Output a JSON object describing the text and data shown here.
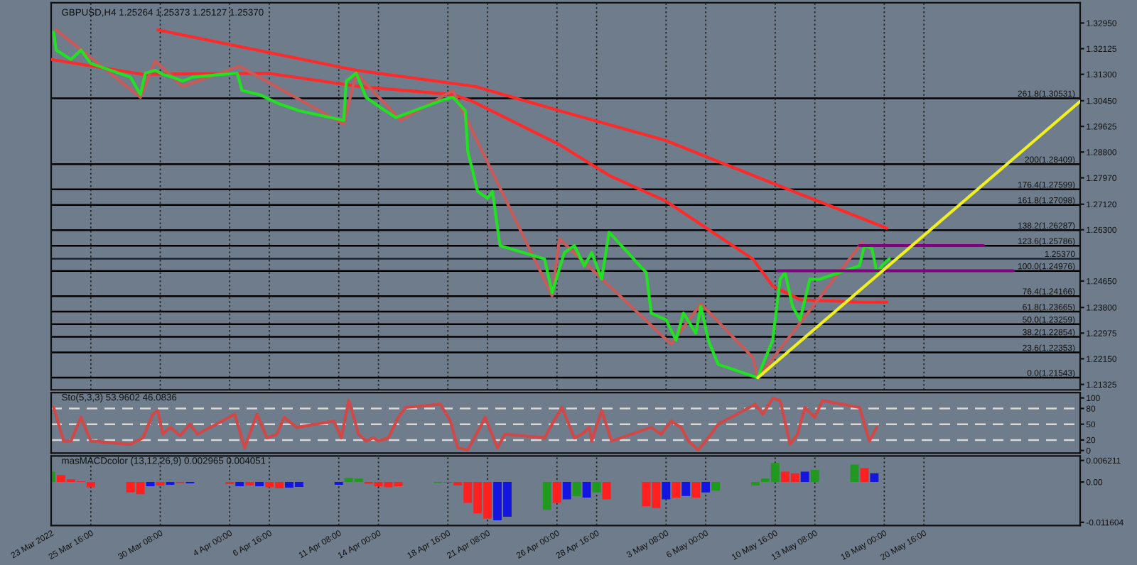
{
  "chart_data": [
    {
      "type": "line",
      "title": "GBPUSD,H4 1.25264 1.25373 1.25127 1.25370",
      "tick_labels": "y",
      "grid": "x",
      "legend": false,
      "xlim": [
        "2022-03-23T00:00",
        "2022-05-31T04:00"
      ],
      "xticks": [
        "2022-03-23T00:00",
        "2022-03-25T16:00",
        "2022-03-30T08:00",
        "2022-04-04T00:00",
        "2022-04-06T16:00",
        "2022-04-11T08:00",
        "2022-04-14T00:00",
        "2022-04-18T16:00",
        "2022-04-21T08:00",
        "2022-04-26T00:00",
        "2022-04-28T16:00",
        "2022-05-03T08:00",
        "2022-05-06T00:00",
        "2022-05-10T16:00",
        "2022-05-13T08:00",
        "2022-05-18T00:00",
        "2022-05-20T16:00"
      ],
      "ylim": [
        1.2115,
        1.336
      ],
      "yticks": [
        {
          "value": 1.3295,
          "label": "1.32950"
        },
        {
          "value": 1.32125,
          "label": "1.32125"
        },
        {
          "value": 1.313,
          "label": "1.31300"
        },
        {
          "value": 1.3045,
          "label": "1.30450"
        },
        {
          "value": 1.29625,
          "label": "1.29625"
        },
        {
          "value": 1.288,
          "label": "1.28800"
        },
        {
          "value": 1.2797,
          "label": "1.27970"
        },
        {
          "value": 1.2712,
          "label": "1.27120"
        },
        {
          "value": 1.263,
          "label": "1.26300"
        },
        {
          "value": 1.2465,
          "label": "1.24650"
        },
        {
          "value": 1.238,
          "label": "1.23800"
        },
        {
          "value": 1.22975,
          "label": "1.22975"
        },
        {
          "value": 1.2215,
          "label": "1.22150"
        },
        {
          "value": 1.21325,
          "label": "1.21325"
        }
      ],
      "series": [
        {
          "color": "#ff2a2a",
          "x": [
            "2022-03-30T04:00",
            "2022-04-12T12:00",
            "2022-04-20T12:00",
            "2022-04-26T04:00",
            "2022-05-03T08:00",
            "2022-05-09T04:00",
            "2022-05-18T04:00"
          ],
          "values": [
            1.3273,
            1.3143,
            1.3091,
            1.3013,
            1.2917,
            1.2805,
            1.2635
          ]
        },
        {
          "color": "#ff2a2a",
          "x": [
            "2022-03-23T00:00",
            "2022-03-29T04:00",
            "2022-04-06T12:00",
            "2022-04-12T16:00",
            "2022-04-19T00:00",
            "2022-04-20T08:00",
            "2022-04-26T04:00",
            "2022-04-29T12:00",
            "2022-05-03T08:00",
            "2022-05-09T04:00",
            "2022-05-10T12:00",
            "2022-05-12T08:00",
            "2022-05-16T12:00",
            "2022-05-18T04:00"
          ],
          "values": [
            1.3178,
            1.313,
            1.3134,
            1.3091,
            1.3065,
            1.3043,
            1.2904,
            1.2805,
            1.2722,
            1.2536,
            1.2449,
            1.2405,
            1.2397,
            1.2397
          ]
        },
        {
          "color": "#c85a5a",
          "x": [
            "2022-03-23T08:00",
            "2022-03-29T00:00",
            "2022-03-30T00:00",
            "2022-03-31T20:00",
            "2022-04-04T16:00",
            "2022-04-11T16:00",
            "2022-04-12T12:00",
            "2022-04-15T12:00",
            "2022-04-19T00:00",
            "2022-04-25T16:00",
            "2022-04-26T04:00",
            "2022-05-03T16:00",
            "2022-05-05T16:00",
            "2022-05-09T04:00",
            "2022-05-09T12:00",
            "2022-05-16T12:00"
          ],
          "values": [
            1.3273,
            1.3056,
            1.3173,
            1.3091,
            1.3156,
            1.297,
            1.3134,
            1.2982,
            1.3078,
            1.2418,
            1.2601,
            1.2262,
            1.2392,
            1.2219,
            1.2154,
            1.2588
          ]
        },
        {
          "color": "#22e022",
          "x": [
            "2022-03-23T04:00",
            "2022-03-23T08:00",
            "2022-03-24T08:00",
            "2022-03-25T00:00",
            "2022-03-25T16:00",
            "2022-03-28T08:00",
            "2022-03-29T00:00",
            "2022-03-29T08:00",
            "2022-03-30T00:00",
            "2022-03-30T12:00",
            "2022-03-31T04:00",
            "2022-03-31T20:00",
            "2022-04-01T12:00",
            "2022-04-04T12:00",
            "2022-04-04T20:00",
            "2022-04-06T00:00",
            "2022-04-07T08:00",
            "2022-04-08T16:00",
            "2022-04-11T16:00",
            "2022-04-11T20:00",
            "2022-04-12T12:00",
            "2022-04-13T04:00",
            "2022-04-14T04:00",
            "2022-04-15T04:00",
            "2022-04-18T08:00",
            "2022-04-19T00:00",
            "2022-04-19T20:00",
            "2022-04-20T00:00",
            "2022-04-20T16:00",
            "2022-04-21T08:00",
            "2022-04-21T16:00",
            "2022-04-22T04:00",
            "2022-04-25T04:00",
            "2022-04-25T16:00",
            "2022-04-26T12:00",
            "2022-04-27T04:00",
            "2022-04-27T20:00",
            "2022-04-28T08:00",
            "2022-04-29T00:00",
            "2022-04-29T12:00",
            "2022-05-02T00:00",
            "2022-05-02T08:00",
            "2022-05-03T08:00",
            "2022-05-04T00:00",
            "2022-05-04T12:00",
            "2022-05-05T08:00",
            "2022-05-05T16:00",
            "2022-05-06T04:00",
            "2022-05-06T20:00",
            "2022-05-09T12:00",
            "2022-05-09T20:00",
            "2022-05-10T12:00",
            "2022-05-11T00:00",
            "2022-05-11T08:00",
            "2022-05-11T20:00",
            "2022-05-12T08:00",
            "2022-05-13T00:00",
            "2022-05-13T16:00",
            "2022-05-16T08:00",
            "2022-05-16T16:00",
            "2022-05-17T04:00",
            "2022-05-17T12:00",
            "2022-05-17T20:00",
            "2022-05-18T08:00"
          ],
          "values": [
            1.3265,
            1.3208,
            1.3178,
            1.3208,
            1.3165,
            1.3121,
            1.3065,
            1.3134,
            1.3143,
            1.313,
            1.3121,
            1.3108,
            1.3121,
            1.3134,
            1.3078,
            1.3065,
            1.3035,
            1.3013,
            1.2982,
            1.3108,
            1.3134,
            1.3056,
            1.3022,
            1.2991,
            1.3048,
            1.3056,
            1.3013,
            1.2883,
            1.2753,
            1.2731,
            1.2753,
            1.2579,
            1.2536,
            1.2427,
            1.2557,
            1.2579,
            1.2514,
            1.2557,
            1.2471,
            1.2622,
            1.2492,
            1.2362,
            1.234,
            1.2275,
            1.2362,
            1.2297,
            1.2384,
            1.2275,
            1.2197,
            1.2154,
            1.2197,
            1.2275,
            1.2471,
            1.2492,
            1.2384,
            1.234,
            1.2471,
            1.2471,
            1.2514,
            1.2579,
            1.257,
            1.2492,
            1.2514,
            1.2537
          ]
        },
        {
          "color": "#800080",
          "x": [
            "2022-05-16T08:00",
            "2022-05-24T16:00"
          ],
          "values": [
            1.2579,
            1.2579
          ]
        },
        {
          "color": "#800080",
          "x": [
            "2022-05-10T20:00",
            "2022-05-26T16:00"
          ],
          "values": [
            1.2498,
            1.2498
          ]
        },
        {
          "color": "#f0f020",
          "x": [
            "2022-05-09T12:00",
            "2022-05-31T04:00"
          ],
          "values": [
            1.2154,
            1.3043
          ]
        }
      ],
      "ref_lines": [
        {
          "axis": "y",
          "value": 1.30531,
          "label": "261.8(1.30531)",
          "color": "#000000"
        },
        {
          "axis": "y",
          "value": 1.28409,
          "label": "200(1.28409)",
          "color": "#000000"
        },
        {
          "axis": "y",
          "value": 1.27599,
          "label": "176.4(1.27599)",
          "color": "#000000"
        },
        {
          "axis": "y",
          "value": 1.27098,
          "label": "161.8(1.27098)",
          "color": "#000000"
        },
        {
          "axis": "y",
          "value": 1.26287,
          "label": "138.2(1.26287)",
          "color": "#000000"
        },
        {
          "axis": "y",
          "value": 1.25786,
          "label": "123.6(1.25786)",
          "color": "#000000"
        },
        {
          "axis": "y",
          "value": 1.2537,
          "label": "1.25370",
          "color": "#1a2230"
        },
        {
          "axis": "y",
          "value": 1.24976,
          "label": "100.0(1.24976)",
          "color": "#000000"
        },
        {
          "axis": "y",
          "value": 1.24166,
          "label": "76.4(1.24166)",
          "color": "#000000"
        },
        {
          "axis": "y",
          "value": 1.23665,
          "label": "61.8(1.23665)",
          "color": "#000000"
        },
        {
          "axis": "y",
          "value": 1.23259,
          "label": "50.0(1.23259)",
          "color": "#000000"
        },
        {
          "axis": "y",
          "value": 1.22854,
          "label": "38.2(1.22854)",
          "color": "#000000"
        },
        {
          "axis": "y",
          "value": 1.22353,
          "label": "23.6(1.22353)",
          "color": "#000000"
        },
        {
          "axis": "y",
          "value": 1.21543,
          "label": "0.0(1.21543)",
          "color": "#000000"
        }
      ]
    },
    {
      "type": "line",
      "title": "Sto(5,3,3) 53.9602 46.0836",
      "tick_labels": "y",
      "grid": "x",
      "legend": false,
      "xlim": [
        "2022-03-23T00:00",
        "2022-05-31T04:00"
      ],
      "ylim": [
        -5,
        110
      ],
      "yticks": [
        0,
        20,
        50,
        80,
        100
      ],
      "series": [
        {
          "color": "#d04848",
          "x": [
            "2022-03-23T04:00",
            "2022-03-23T20:00",
            "2022-03-24T08:00",
            "2022-03-25T00:00",
            "2022-03-25T16:00",
            "2022-03-28T08:00",
            "2022-03-29T04:00",
            "2022-03-29T20:00",
            "2022-03-30T04:00",
            "2022-03-30T12:00",
            "2022-03-31T00:00",
            "2022-03-31T16:00",
            "2022-04-01T08:00",
            "2022-04-01T20:00",
            "2022-04-04T08:00",
            "2022-04-05T00:00",
            "2022-04-05T12:00",
            "2022-04-05T20:00",
            "2022-04-06T12:00",
            "2022-04-07T04:00",
            "2022-04-07T16:00",
            "2022-04-08T12:00",
            "2022-04-11T00:00",
            "2022-04-11T12:00",
            "2022-04-12T00:00",
            "2022-04-12T16:00",
            "2022-04-13T04:00",
            "2022-04-13T16:00",
            "2022-04-14T00:00",
            "2022-04-14T16:00",
            "2022-04-15T08:00",
            "2022-04-15T20:00",
            "2022-04-18T04:00",
            "2022-04-18T20:00",
            "2022-04-19T08:00",
            "2022-04-20T00:00",
            "2022-04-20T20:00",
            "2022-04-21T04:00",
            "2022-04-22T00:00",
            "2022-04-22T12:00",
            "2022-04-25T04:00",
            "2022-04-25T16:00",
            "2022-04-26T08:00",
            "2022-04-27T04:00",
            "2022-04-27T16:00",
            "2022-04-28T04:00",
            "2022-04-28T08:00",
            "2022-04-29T00:00",
            "2022-04-29T16:00",
            "2022-05-02T08:00",
            "2022-05-03T00:00",
            "2022-05-03T16:00",
            "2022-05-04T08:00",
            "2022-05-04T20:00",
            "2022-05-05T12:00",
            "2022-05-06T04:00",
            "2022-05-06T20:00",
            "2022-05-09T08:00",
            "2022-05-09T20:00",
            "2022-05-10T12:00",
            "2022-05-11T00:00",
            "2022-05-11T16:00",
            "2022-05-12T04:00",
            "2022-05-12T16:00",
            "2022-05-13T08:00",
            "2022-05-13T20:00",
            "2022-05-16T08:00",
            "2022-05-17T00:00",
            "2022-05-17T12:00"
          ],
          "values": [
            82,
            18,
            18,
            63,
            18,
            12,
            24,
            69,
            76,
            31,
            44,
            28,
            50,
            31,
            69,
            5,
            44,
            69,
            24,
            31,
            63,
            44,
            56,
            24,
            95,
            31,
            18,
            24,
            18,
            24,
            63,
            82,
            88,
            56,
            5,
            1,
            44,
            63,
            5,
            31,
            24,
            50,
            82,
            24,
            31,
            44,
            18,
            76,
            18,
            44,
            31,
            56,
            44,
            18,
            1,
            24,
            50,
            88,
            69,
            99,
            95,
            12,
            31,
            82,
            63,
            95,
            82,
            18,
            44
          ]
        }
      ],
      "ref_lines": [
        {
          "axis": "y",
          "value": 80,
          "color": "#d8d8d8",
          "line_style": "dashed"
        },
        {
          "axis": "y",
          "value": 50,
          "color": "#d8d8d8",
          "line_style": "dashed"
        },
        {
          "axis": "y",
          "value": 20,
          "color": "#d8d8d8",
          "line_style": "dashed"
        }
      ]
    },
    {
      "type": "bar",
      "title": "masMACDcolor (13,12,26,9) 0.002965 0.004051",
      "grid": "x",
      "legend": false,
      "xlim": [
        "2022-03-23T00:00",
        "2022-05-31T04:00"
      ],
      "xticks": [
        {
          "value": "2022-03-23T00:00",
          "label": "23 Mar 2022"
        },
        {
          "value": "2022-03-25T16:00",
          "label": "25 Mar 16:00"
        },
        {
          "value": "2022-03-30T08:00",
          "label": "30 Mar 08:00"
        },
        {
          "value": "2022-04-04T00:00",
          "label": "4 Apr 00:00"
        },
        {
          "value": "2022-04-06T16:00",
          "label": "6 Apr 16:00"
        },
        {
          "value": "2022-04-11T08:00",
          "label": "11 Apr 08:00"
        },
        {
          "value": "2022-04-14T00:00",
          "label": "14 Apr 00:00"
        },
        {
          "value": "2022-04-18T16:00",
          "label": "18 Apr 16:00"
        },
        {
          "value": "2022-04-21T08:00",
          "label": "21 Apr 08:00"
        },
        {
          "value": "2022-04-26T00:00",
          "label": "26 Apr 00:00"
        },
        {
          "value": "2022-04-28T16:00",
          "label": "28 Apr 16:00"
        },
        {
          "value": "2022-05-03T08:00",
          "label": "3 May 08:00"
        },
        {
          "value": "2022-05-06T00:00",
          "label": "6 May 00:00"
        },
        {
          "value": "2022-05-10T16:00",
          "label": "10 May 16:00"
        },
        {
          "value": "2022-05-13T08:00",
          "label": "13 May 08:00"
        },
        {
          "value": "2022-05-18T00:00",
          "label": "18 May 00:00"
        },
        {
          "value": "2022-05-20T16:00",
          "label": "20 May 16:00"
        }
      ],
      "ylim": [
        -0.0125,
        0.0075
      ],
      "yticks": [
        {
          "value": 0.006211,
          "label": "0.006211"
        },
        {
          "value": 0,
          "label": "0.00"
        },
        {
          "value": -0.011604,
          "label": "-0.011604"
        }
      ],
      "x": [
        "2022-03-23T00:00",
        "2022-03-23T16:00",
        "2022-03-24T08:00",
        "2022-03-25T00:00",
        "2022-03-25T16:00",
        "2022-03-28T08:00",
        "2022-03-29T00:00",
        "2022-03-29T16:00",
        "2022-03-30T08:00",
        "2022-03-31T00:00",
        "2022-03-31T16:00",
        "2022-04-01T08:00",
        "2022-04-04T00:00",
        "2022-04-04T16:00",
        "2022-04-05T08:00",
        "2022-04-06T00:00",
        "2022-04-06T16:00",
        "2022-04-07T08:00",
        "2022-04-08T00:00",
        "2022-04-08T16:00",
        "2022-04-11T08:00",
        "2022-04-12T00:00",
        "2022-04-12T16:00",
        "2022-04-13T08:00",
        "2022-04-14T00:00",
        "2022-04-14T16:00",
        "2022-04-15T08:00",
        "2022-04-18T00:00",
        "2022-04-18T16:00",
        "2022-04-19T08:00",
        "2022-04-20T00:00",
        "2022-04-20T16:00",
        "2022-04-21T08:00",
        "2022-04-22T00:00",
        "2022-04-22T16:00",
        "2022-04-25T08:00",
        "2022-04-26T00:00",
        "2022-04-26T16:00",
        "2022-04-27T08:00",
        "2022-04-28T00:00",
        "2022-04-28T16:00",
        "2022-04-29T08:00",
        "2022-05-02T00:00",
        "2022-05-02T16:00",
        "2022-05-03T08:00",
        "2022-05-04T00:00",
        "2022-05-04T16:00",
        "2022-05-05T08:00",
        "2022-05-06T00:00",
        "2022-05-06T16:00",
        "2022-05-09T08:00",
        "2022-05-10T00:00",
        "2022-05-10T16:00",
        "2022-05-11T08:00",
        "2022-05-12T00:00",
        "2022-05-12T16:00",
        "2022-05-13T08:00",
        "2022-05-16T00:00",
        "2022-05-16T16:00",
        "2022-05-17T08:00"
      ],
      "values": [
        0.003,
        0.002,
        0.0008,
        0.0002,
        -0.0015,
        -0.003,
        -0.0035,
        -0.0012,
        -0.001,
        -0.0008,
        -0.0003,
        -0.0004,
        -0.0006,
        -0.0012,
        -0.001,
        -0.0012,
        -0.0015,
        -0.0018,
        -0.0016,
        -0.0014,
        -0.0008,
        0.0012,
        0.001,
        -0.0005,
        -0.0012,
        -0.0015,
        -0.0012,
        -0.0003,
        -0.0002,
        -0.001,
        -0.006,
        -0.009,
        -0.0105,
        -0.011,
        -0.01,
        -0.008,
        -0.006,
        -0.005,
        -0.004,
        -0.0045,
        -0.003,
        -0.005,
        -0.007,
        -0.0075,
        -0.005,
        -0.0045,
        -0.004,
        -0.0045,
        -0.003,
        -0.0025,
        -0.001,
        0.001,
        0.0055,
        0.003,
        0.0025,
        0.003,
        0.0035,
        0.005,
        0.004,
        0.0025
      ],
      "colors": [
        "#1f9a1f",
        "#ff2020",
        "#ff2020",
        "#ff2020",
        "#ff2020",
        "#ff2020",
        "#ff2020",
        "#1515e0",
        "#ff2020",
        "#1515e0",
        "#ff2020",
        "#1515e0",
        "#ff2020",
        "#1515e0",
        "#ff2020",
        "#1515e0",
        "#ff2020",
        "#ff2020",
        "#1515e0",
        "#1515e0",
        "#1515e0",
        "#1f9a1f",
        "#1f9a1f",
        "#ff2020",
        "#ff2020",
        "#ff2020",
        "#ff2020",
        "#1f9a1f",
        "#ff2020",
        "#ff2020",
        "#ff2020",
        "#ff2020",
        "#ff2020",
        "#1515e0",
        "#1515e0",
        "#1f9a1f",
        "#ff2020",
        "#1515e0",
        "#1f9a1f",
        "#1515e0",
        "#1f9a1f",
        "#ff2020",
        "#ff2020",
        "#ff2020",
        "#1515e0",
        "#ff2020",
        "#1515e0",
        "#ff2020",
        "#1515e0",
        "#1f9a1f",
        "#1f9a1f",
        "#1f9a1f",
        "#1f9a1f",
        "#ff2020",
        "#ff2020",
        "#1515e0",
        "#1f9a1f",
        "#1f9a1f",
        "#ff2020",
        "#1515e0"
      ]
    }
  ]
}
